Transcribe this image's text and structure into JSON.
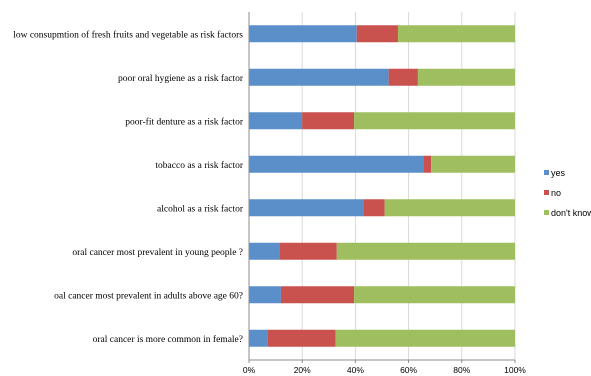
{
  "chart_data": {
    "type": "bar",
    "orientation": "horizontal",
    "stacked": "percent",
    "categories": [
      "low consupmtion of fresh fruits and vegetable as risk factors",
      "poor oral hygiene as a risk factor",
      "poor-fit denture as a risk factor",
      "tobacco as a risk factor",
      "alcohol as a risk factor",
      "oral cancer most prevalent in young people ?",
      "oal cancer most prevalent in adults above age 60?",
      "oral cancer is more common in female?"
    ],
    "series": [
      {
        "name": "yes",
        "color": "#5b8fc9",
        "values": [
          40.5,
          52.5,
          20,
          65.5,
          43,
          11.5,
          12,
          7
        ]
      },
      {
        "name": "no",
        "color": "#c9514e",
        "values": [
          15.5,
          11,
          19.5,
          3,
          8,
          21.5,
          27.5,
          25.5
        ]
      },
      {
        "name": "don't know",
        "color": "#9fbe5f",
        "values": [
          44,
          36.5,
          60.5,
          31.5,
          49,
          67,
          60.5,
          67.5
        ]
      }
    ],
    "xlim": [
      0,
      100
    ],
    "x_ticks": [
      "0%",
      "20%",
      "40%",
      "60%",
      "80%",
      "100%"
    ],
    "grid": true,
    "legend_position": "right"
  }
}
